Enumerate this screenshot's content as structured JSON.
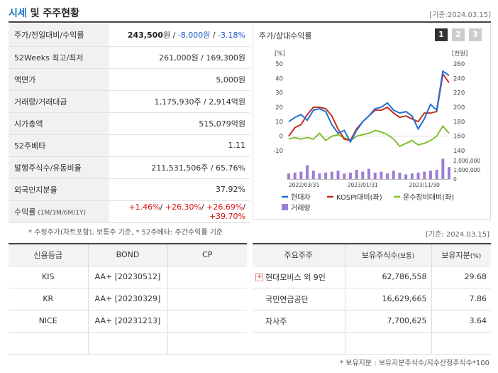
{
  "header": {
    "title_highlight": "시세",
    "title_rest": " 및 주주현황",
    "date": "[기준:2024.03.15]"
  },
  "quote_rows": [
    {
      "label": "주가/전일대비/수익률",
      "parts": [
        {
          "t": "243,500",
          "c": "bold"
        },
        {
          "t": "원 / ",
          "c": ""
        },
        {
          "t": "-8,000원",
          "c": "blue"
        },
        {
          "t": " / ",
          "c": ""
        },
        {
          "t": "-3.18%",
          "c": "blue"
        }
      ]
    },
    {
      "label": "52Weeks 최고/최저",
      "parts": [
        {
          "t": "261,000원 / 169,300원",
          "c": ""
        }
      ]
    },
    {
      "label": "액면가",
      "parts": [
        {
          "t": "5,000원",
          "c": ""
        }
      ]
    },
    {
      "label": "거래량/거래대금",
      "parts": [
        {
          "t": "1,175,930주 / 2,914억원",
          "c": ""
        }
      ]
    },
    {
      "label": "시가총액",
      "parts": [
        {
          "t": "515,079억원",
          "c": ""
        }
      ]
    },
    {
      "label": "52주베타",
      "parts": [
        {
          "t": "1.11",
          "c": ""
        }
      ]
    },
    {
      "label": "발행주식수/유동비율",
      "parts": [
        {
          "t": "211,531,506주 / 65.76%",
          "c": ""
        }
      ]
    },
    {
      "label": "외국인지분율",
      "parts": [
        {
          "t": "37.92%",
          "c": ""
        }
      ]
    },
    {
      "label": "수익률",
      "label_small": " (1M/3M/6M/1Y)",
      "parts": [
        {
          "t": "+1.46%",
          "c": "red"
        },
        {
          "t": "/ ",
          "c": ""
        },
        {
          "t": "+26.30%",
          "c": "red"
        },
        {
          "t": "/ ",
          "c": ""
        },
        {
          "t": "+26.69%",
          "c": "red"
        },
        {
          "t": "/ ",
          "c": ""
        },
        {
          "t": "+39.70%",
          "c": "red"
        }
      ]
    }
  ],
  "chart_panel": {
    "title": "주가/상대수익률",
    "pages": [
      "1",
      "2",
      "3"
    ],
    "active_page": 0
  },
  "chart_data": {
    "type": "line",
    "left_unit": "[%]",
    "right_unit": "[천원]",
    "left_ticks": [
      50,
      40,
      30,
      20,
      10,
      0,
      -10
    ],
    "right_ticks": [
      260,
      240,
      220,
      200,
      180,
      160,
      140
    ],
    "volume_ticks": [
      "2,000,000",
      "1,000,000",
      "0"
    ],
    "x_ticks": [
      "2022/03/31",
      "2023/01/31",
      "2023/11/30"
    ],
    "x_tick_positions": [
      0,
      12,
      22
    ],
    "colors": {
      "stock": "#1f6fd6",
      "kospi": "#c4301e",
      "sector": "#7fbf2e",
      "volume": "#9b7fd6"
    },
    "series": [
      {
        "name": "현대차",
        "axis": "left",
        "values": [
          10,
          13,
          15,
          11,
          18,
          19,
          17,
          8,
          2,
          4,
          -4,
          4,
          10,
          14,
          19,
          20,
          23,
          18,
          16,
          17,
          14,
          5,
          12,
          22,
          18,
          45,
          42
        ]
      },
      {
        "name": "KOSPI대비(좌)",
        "axis": "left",
        "values": [
          0,
          6,
          8,
          15,
          20,
          20,
          19,
          14,
          5,
          -2,
          -3,
          5,
          10,
          14,
          18,
          18,
          20,
          16,
          13,
          14,
          12,
          10,
          16,
          16,
          17,
          43,
          37
        ]
      },
      {
        "name": "운수장비대비(좌)",
        "axis": "left",
        "values": [
          -2,
          -1,
          -2,
          -1,
          -2,
          2,
          -3,
          0,
          1,
          -1,
          -3,
          0,
          1,
          2,
          4,
          3,
          1,
          -2,
          -7,
          -5,
          -3,
          -6,
          -5,
          -3,
          0,
          7,
          2
        ]
      },
      {
        "name": "거래량",
        "axis": "volume",
        "values": [
          600000,
          700000,
          800000,
          1500000,
          900000,
          600000,
          700000,
          800000,
          900000,
          600000,
          700000,
          1000000,
          800000,
          1100000,
          700000,
          800000,
          600000,
          900000,
          700000,
          500000,
          600000,
          700000,
          800000,
          900000,
          1000000,
          2200000,
          1300000
        ]
      }
    ],
    "legend": [
      "현대차",
      "KOSPI대비(좌)",
      "운수장비대비(좌)",
      "거래량"
    ],
    "ylim": [
      -10,
      50
    ],
    "volume_max": 2000000
  },
  "note_left": "* 수정주가(차트포함), 보통주 기준, * 52주베타: 주간수익률 기준",
  "note_right_date": "[기준: 2024.03.15]",
  "credit": {
    "headers": [
      "신용등급",
      "BOND",
      "CP"
    ],
    "rows": [
      [
        "KIS",
        "AA+  [20230512]",
        ""
      ],
      [
        "KR",
        "AA+  [20230329]",
        ""
      ],
      [
        "NICE",
        "AA+  [20231213]",
        ""
      ],
      [
        "",
        "",
        ""
      ]
    ]
  },
  "holders": {
    "headers": [
      "주요주주",
      "보유주식수",
      "(보통)",
      "보유지분",
      "(%)"
    ],
    "rows": [
      {
        "name": "현대모비스 외 9인",
        "shares": "62,786,558",
        "pct": "29.68",
        "expandable": true
      },
      {
        "name": "국민연금공단",
        "shares": "16,629,665",
        "pct": "7.86",
        "expandable": false
      },
      {
        "name": "자사주",
        "shares": "7,700,625",
        "pct": "3.64",
        "expandable": false
      },
      {
        "name": "",
        "shares": "",
        "pct": "",
        "expandable": false
      }
    ]
  },
  "note_bottom": "* 보유지분 : 보유지분주식수/지수산정주식수*100"
}
